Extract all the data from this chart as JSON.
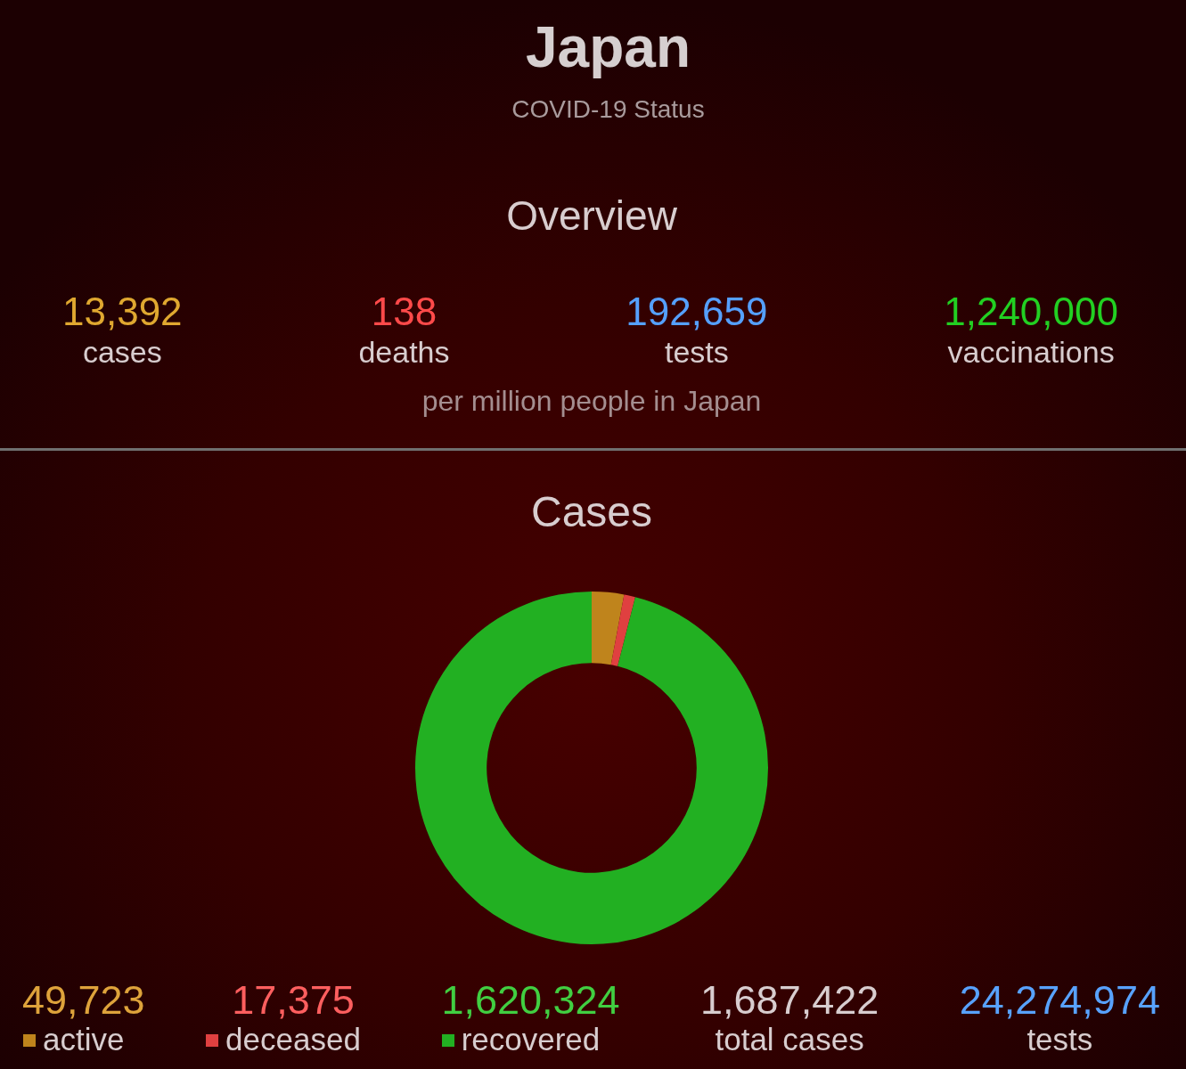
{
  "chart_data": [
    {
      "type": "other",
      "title": "Japan",
      "subtitle": "COVID-19 Status",
      "categories": [
        "cases",
        "deaths",
        "tests",
        "vaccinations"
      ],
      "values": [
        13392,
        138,
        192659,
        1240000
      ],
      "value_labels": [
        "13,392",
        "138",
        "192,659",
        "1,240,000"
      ],
      "colors": [
        "#e0a830",
        "#ff4a4a",
        "#55a0ff",
        "#22d022"
      ],
      "annotations": [
        "Overview",
        "per million people in Japan"
      ]
    },
    {
      "type": "donut",
      "title": "Cases",
      "categories": [
        "active",
        "deceased",
        "recovered"
      ],
      "values": [
        49723,
        17375,
        1620324
      ],
      "value_labels": [
        "49,723",
        "17,375",
        "1,620,324"
      ],
      "colors": [
        "#bf841c",
        "#e04040",
        "#22b022"
      ],
      "legend": "bottom",
      "annotations": [
        "1,687,422",
        "total cases",
        "24,274,974",
        "tests"
      ]
    }
  ]
}
